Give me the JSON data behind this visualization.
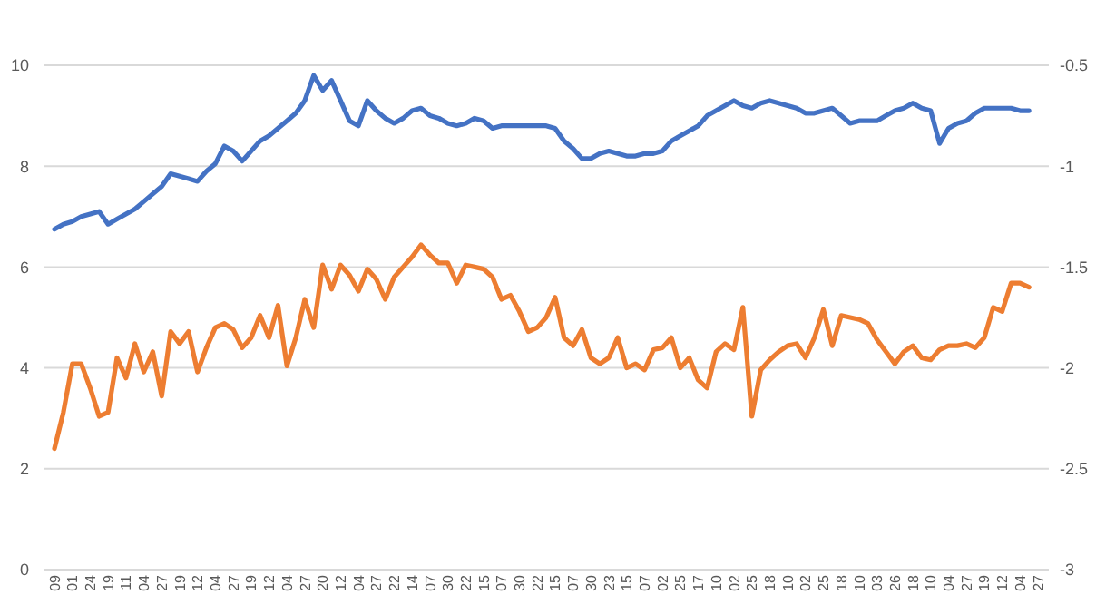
{
  "chart_data": {
    "type": "line",
    "categories": [
      "09",
      null,
      "01",
      null,
      "24",
      null,
      "19",
      null,
      "11",
      null,
      "04",
      null,
      "27",
      null,
      "19",
      null,
      "12",
      null,
      "04",
      null,
      "27",
      null,
      "19",
      null,
      "12",
      null,
      "04",
      null,
      "27",
      null,
      "20",
      null,
      "12",
      null,
      "04",
      null,
      "27",
      null,
      "22",
      null,
      "14",
      null,
      "07",
      null,
      "30",
      null,
      "22",
      null,
      "15",
      null,
      "07",
      null,
      "30",
      null,
      "22",
      null,
      "15",
      null,
      "07",
      null,
      "30",
      null,
      "23",
      null,
      "15",
      null,
      "07",
      null,
      "02",
      null,
      "25",
      null,
      "17",
      null,
      "10",
      null,
      "02",
      null,
      "25",
      null,
      "18",
      null,
      "10",
      null,
      "02",
      null,
      "25",
      null,
      "18",
      null,
      "10",
      null,
      "03",
      null,
      "26",
      null,
      "18",
      null,
      "10",
      null,
      "04",
      null,
      "27",
      null,
      "19",
      null,
      "12",
      null,
      "04",
      null,
      "27"
    ],
    "series": [
      {
        "color": "#4472c4",
        "values": [
          6.75,
          6.85,
          6.9,
          7.0,
          7.05,
          7.1,
          6.85,
          6.95,
          7.05,
          7.15,
          7.3,
          7.45,
          7.6,
          7.85,
          7.8,
          7.75,
          7.7,
          7.9,
          8.05,
          8.4,
          8.3,
          8.1,
          8.3,
          8.5,
          8.6,
          8.75,
          8.9,
          9.05,
          9.3,
          9.8,
          9.5,
          9.7,
          9.3,
          8.9,
          8.8,
          9.3,
          9.1,
          8.95,
          8.85,
          8.95,
          9.1,
          9.15,
          9.0,
          8.95,
          8.85,
          8.8,
          8.85,
          8.95,
          8.9,
          8.75,
          8.8,
          8.8,
          8.8,
          8.8,
          8.8,
          8.8,
          8.75,
          8.5,
          8.35,
          8.15,
          8.15,
          8.25,
          8.3,
          8.25,
          8.2,
          8.2,
          8.25,
          8.25,
          8.3,
          8.5,
          8.6,
          8.7,
          8.8,
          9.0,
          9.1,
          9.2,
          9.3,
          9.2,
          9.15,
          9.25,
          9.3,
          9.25,
          9.2,
          9.15,
          9.05,
          9.05,
          9.1,
          9.15,
          9.0,
          8.85,
          8.9,
          8.9,
          8.9,
          9.0,
          9.1,
          9.15,
          9.25,
          9.15,
          9.1,
          8.45,
          8.75,
          8.85,
          8.9,
          9.05,
          9.15,
          9.15,
          9.15,
          9.15,
          9.1,
          9.1,
          null
        ]
      },
      {
        "color": "#ed7d31",
        "axis": "y2",
        "values": [
          -2.4,
          -2.22,
          -1.98,
          -1.98,
          -2.1,
          -2.24,
          -2.22,
          -1.95,
          -2.05,
          -1.88,
          -2.02,
          -1.92,
          -2.14,
          -1.82,
          -1.88,
          -1.82,
          -2.02,
          -1.9,
          -1.8,
          -1.78,
          -1.81,
          -1.9,
          -1.85,
          -1.74,
          -1.85,
          -1.69,
          -1.99,
          -1.85,
          -1.66,
          -1.8,
          -1.49,
          -1.61,
          -1.49,
          -1.54,
          -1.62,
          -1.51,
          -1.56,
          -1.66,
          -1.55,
          -1.5,
          -1.45,
          -1.39,
          -1.44,
          -1.48,
          -1.48,
          -1.58,
          -1.49,
          -1.5,
          -1.51,
          -1.55,
          -1.66,
          -1.64,
          -1.72,
          -1.82,
          -1.8,
          -1.75,
          -1.65,
          -1.85,
          -1.89,
          -1.81,
          -1.95,
          -1.98,
          -1.95,
          -1.85,
          -2.0,
          -1.98,
          -2.01,
          -1.91,
          -1.9,
          -1.85,
          -2.0,
          -1.95,
          -2.06,
          -2.1,
          -1.92,
          -1.88,
          -1.91,
          -1.7,
          -2.24,
          -2.01,
          -1.96,
          -1.92,
          -1.89,
          -1.88,
          -1.95,
          -1.85,
          -1.71,
          -1.89,
          -1.74,
          -1.75,
          -1.76,
          -1.78,
          -1.86,
          -1.92,
          -1.98,
          -1.92,
          -1.89,
          -1.95,
          -1.96,
          -1.91,
          -1.89,
          -1.89,
          -1.88,
          -1.9,
          -1.85,
          -1.7,
          -1.72,
          -1.58,
          -1.58,
          -1.6,
          null
        ]
      }
    ],
    "ylim": [
      0,
      10
    ],
    "yticks": [
      0,
      2,
      4,
      6,
      8,
      10
    ],
    "y2lim": [
      -3,
      -0.5
    ],
    "y2ticks": [
      -3,
      -2.5,
      -2,
      -1.5,
      -1,
      -0.5
    ],
    "grid": "y"
  }
}
